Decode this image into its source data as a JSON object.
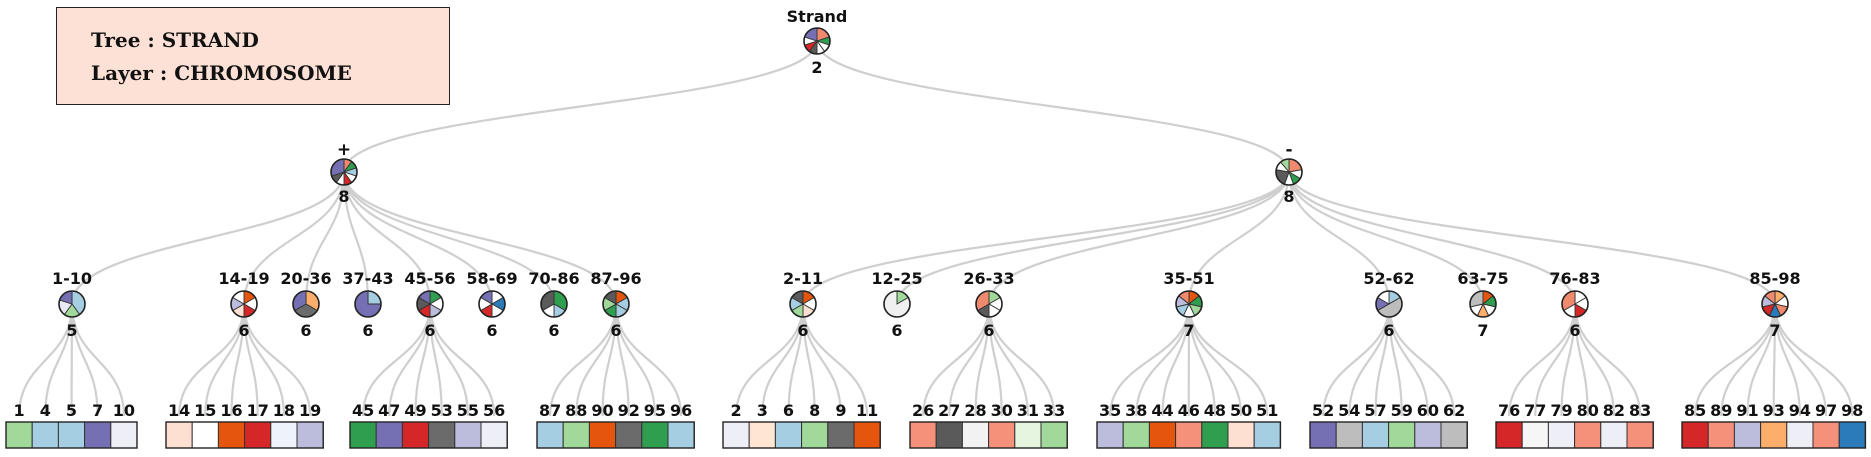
{
  "info": {
    "tree_line": "Tree : STRAND",
    "layer_line": "Layer : CHROMOSOME"
  },
  "colors": {
    "edge": "#cfcfcf",
    "cell_border": "#333333",
    "box_bg": "#fde0d6"
  },
  "tree": {
    "root": {
      "label": "Strand",
      "count": "2",
      "slices": [
        {
          "color": "#f08a6e",
          "value": 2
        },
        {
          "color": "#2f9e4f",
          "value": 1
        },
        {
          "color": "#ffffff",
          "value": 1
        },
        {
          "color": "#ffffff",
          "value": 1
        },
        {
          "color": "#5a5a5a",
          "value": 1
        },
        {
          "color": "#d62728",
          "value": 1
        },
        {
          "color": "#ffffff",
          "value": 1
        },
        {
          "color": "#7570b3",
          "value": 2
        }
      ]
    },
    "groups": [
      {
        "label": "+",
        "count": "8",
        "slices": [
          {
            "color": "#f08a6e",
            "value": 1
          },
          {
            "color": "#2f9e4f",
            "value": 1
          },
          {
            "color": "#a6cee3",
            "value": 1
          },
          {
            "color": "#ffffff",
            "value": 1
          },
          {
            "color": "#d62728",
            "value": 1
          },
          {
            "color": "#ffffff",
            "value": 1
          },
          {
            "color": "#5a5a5a",
            "value": 1
          },
          {
            "color": "#7570b3",
            "value": 3
          }
        ],
        "clusters": [
          {
            "label": "1-10",
            "count": "5",
            "slices": [
              {
                "color": "#a6cee3",
                "value": 2
              },
              {
                "color": "#a1d99b",
                "value": 1
              },
              {
                "color": "#e8e8f4",
                "value": 1
              },
              {
                "color": "#7570b3",
                "value": 1
              }
            ],
            "leaves": [
              {
                "id": "1",
                "color": "#a1d99b"
              },
              {
                "id": "4",
                "color": "#a6cee3"
              },
              {
                "id": "5",
                "color": "#a6cee3"
              },
              {
                "id": "7",
                "color": "#7570b3"
              },
              {
                "id": "10",
                "color": "#eeeef6"
              }
            ]
          },
          {
            "label": "14-19",
            "count": "6",
            "slices": [
              {
                "color": "#e6550d",
                "value": 1
              },
              {
                "color": "#ffffff",
                "value": 1
              },
              {
                "color": "#d62728",
                "value": 1
              },
              {
                "color": "#fee0d2",
                "value": 1
              },
              {
                "color": "#bcbddc",
                "value": 1
              },
              {
                "color": "#ffffff",
                "value": 1
              }
            ],
            "leaves": [
              {
                "id": "14",
                "color": "#fee0d2"
              },
              {
                "id": "15",
                "color": "#ffffff"
              },
              {
                "id": "16",
                "color": "#e6550d"
              },
              {
                "id": "17",
                "color": "#d62728"
              },
              {
                "id": "18",
                "color": "#eef3fb"
              },
              {
                "id": "19",
                "color": "#bcbddc"
              }
            ]
          },
          {
            "label": "20-36",
            "count": "6",
            "slices": [
              {
                "color": "#fdae6b",
                "value": 2
              },
              {
                "color": "#6b6b6b",
                "value": 2
              },
              {
                "color": "#7570b3",
                "value": 2
              }
            ],
            "leaves": []
          },
          {
            "label": "37-43",
            "count": "6",
            "slices": [
              {
                "color": "#a6cee3",
                "value": 1
              },
              {
                "color": "#7570b3",
                "value": 3
              }
            ],
            "leaves": []
          },
          {
            "label": "45-56",
            "count": "6",
            "slices": [
              {
                "color": "#2f9e4f",
                "value": 1
              },
              {
                "color": "#ffffff",
                "value": 1
              },
              {
                "color": "#bcbddc",
                "value": 1
              },
              {
                "color": "#d62728",
                "value": 1
              },
              {
                "color": "#5a5a5a",
                "value": 1
              },
              {
                "color": "#7570b3",
                "value": 1
              }
            ],
            "leaves": [
              {
                "id": "45",
                "color": "#2f9e4f"
              },
              {
                "id": "47",
                "color": "#7570b3"
              },
              {
                "id": "49",
                "color": "#d62728"
              },
              {
                "id": "53",
                "color": "#6b6b6b"
              },
              {
                "id": "55",
                "color": "#bcbddc"
              },
              {
                "id": "56",
                "color": "#eeeef6"
              }
            ]
          },
          {
            "label": "58-69",
            "count": "6",
            "slices": [
              {
                "color": "#ffffff",
                "value": 1
              },
              {
                "color": "#2b7bba",
                "value": 1
              },
              {
                "color": "#ffffff",
                "value": 1
              },
              {
                "color": "#d62728",
                "value": 1
              },
              {
                "color": "#ffffff",
                "value": 1
              },
              {
                "color": "#7570b3",
                "value": 1
              }
            ],
            "leaves": []
          },
          {
            "label": "70-86",
            "count": "6",
            "slices": [
              {
                "color": "#2f9e4f",
                "value": 2
              },
              {
                "color": "#a6cee3",
                "value": 1
              },
              {
                "color": "#ffffff",
                "value": 1
              },
              {
                "color": "#5a5a5a",
                "value": 2
              }
            ],
            "leaves": []
          },
          {
            "label": "87-96",
            "count": "6",
            "slices": [
              {
                "color": "#e6550d",
                "value": 1
              },
              {
                "color": "#a6cee3",
                "value": 1
              },
              {
                "color": "#a6cee3",
                "value": 1
              },
              {
                "color": "#2f9e4f",
                "value": 1
              },
              {
                "color": "#a1d99b",
                "value": 1
              },
              {
                "color": "#5a5a5a",
                "value": 1
              }
            ],
            "leaves": [
              {
                "id": "87",
                "color": "#a6cee3"
              },
              {
                "id": "88",
                "color": "#a1d99b"
              },
              {
                "id": "90",
                "color": "#e6550d"
              },
              {
                "id": "92",
                "color": "#6b6b6b"
              },
              {
                "id": "95",
                "color": "#2f9e4f"
              },
              {
                "id": "96",
                "color": "#a6cee3"
              }
            ]
          }
        ]
      },
      {
        "label": "-",
        "count": "8",
        "slices": [
          {
            "color": "#f08a6e",
            "value": 2
          },
          {
            "color": "#ffffff",
            "value": 1
          },
          {
            "color": "#2f9e4f",
            "value": 1
          },
          {
            "color": "#ffffff",
            "value": 1
          },
          {
            "color": "#5a5a5a",
            "value": 2
          },
          {
            "color": "#ffffff",
            "value": 1
          },
          {
            "color": "#a1d99b",
            "value": 1
          }
        ],
        "clusters": [
          {
            "label": "2-11",
            "count": "6",
            "slices": [
              {
                "color": "#e6550d",
                "value": 1
              },
              {
                "color": "#ffffff",
                "value": 1
              },
              {
                "color": "#fee0d2",
                "value": 1
              },
              {
                "color": "#a1d99b",
                "value": 1
              },
              {
                "color": "#a6cee3",
                "value": 1
              },
              {
                "color": "#5a5a5a",
                "value": 1
              }
            ],
            "leaves": [
              {
                "id": "2",
                "color": "#eeeef6"
              },
              {
                "id": "3",
                "color": "#fee6d2"
              },
              {
                "id": "6",
                "color": "#a6cee3"
              },
              {
                "id": "8",
                "color": "#a1d99b"
              },
              {
                "id": "9",
                "color": "#6b6b6b"
              },
              {
                "id": "11",
                "color": "#e6550d"
              }
            ]
          },
          {
            "label": "12-25",
            "count": "6",
            "slices": [
              {
                "color": "#a1d99b",
                "value": 1
              },
              {
                "color": "#f0f0f0",
                "value": 5
              }
            ],
            "leaves": []
          },
          {
            "label": "26-33",
            "count": "6",
            "slices": [
              {
                "color": "#a1d99b",
                "value": 1
              },
              {
                "color": "#ffffff",
                "value": 1
              },
              {
                "color": "#ffffff",
                "value": 1
              },
              {
                "color": "#5a5a5a",
                "value": 1
              },
              {
                "color": "#f08a6e",
                "value": 2
              }
            ],
            "leaves": [
              {
                "id": "26",
                "color": "#f5917a"
              },
              {
                "id": "27",
                "color": "#5a5a5a"
              },
              {
                "id": "28",
                "color": "#f2f2f2"
              },
              {
                "id": "30",
                "color": "#f5917a"
              },
              {
                "id": "31",
                "color": "#e5f5e0"
              },
              {
                "id": "33",
                "color": "#a1d99b"
              }
            ]
          },
          {
            "label": "35-51",
            "count": "7",
            "slices": [
              {
                "color": "#e6550d",
                "value": 1
              },
              {
                "color": "#2f9e4f",
                "value": 1
              },
              {
                "color": "#a1d99b",
                "value": 1
              },
              {
                "color": "#ffffff",
                "value": 1
              },
              {
                "color": "#a6cee3",
                "value": 1
              },
              {
                "color": "#bcbddc",
                "value": 1
              },
              {
                "color": "#f08a6e",
                "value": 1
              }
            ],
            "leaves": [
              {
                "id": "35",
                "color": "#bcbddc"
              },
              {
                "id": "38",
                "color": "#a1d99b"
              },
              {
                "id": "44",
                "color": "#e6550d"
              },
              {
                "id": "46",
                "color": "#f5917a"
              },
              {
                "id": "48",
                "color": "#2f9e4f"
              },
              {
                "id": "50",
                "color": "#fee0d2"
              },
              {
                "id": "51",
                "color": "#a6cee3"
              }
            ]
          },
          {
            "label": "52-62",
            "count": "6",
            "slices": [
              {
                "color": "#a6cee3",
                "value": 1
              },
              {
                "color": "#bdbdbd",
                "value": 3
              },
              {
                "color": "#7570b3",
                "value": 1
              },
              {
                "color": "#ffffff",
                "value": 1
              }
            ],
            "leaves": [
              {
                "id": "52",
                "color": "#7570b3"
              },
              {
                "id": "54",
                "color": "#bdbdbd"
              },
              {
                "id": "57",
                "color": "#a6cee3"
              },
              {
                "id": "59",
                "color": "#a1d99b"
              },
              {
                "id": "60",
                "color": "#bcbddc"
              },
              {
                "id": "62",
                "color": "#bdbdbd"
              }
            ]
          },
          {
            "label": "63-75",
            "count": "7",
            "slices": [
              {
                "color": "#e6550d",
                "value": 1
              },
              {
                "color": "#2f9e4f",
                "value": 1
              },
              {
                "color": "#ffffff",
                "value": 1
              },
              {
                "color": "#fdae6b",
                "value": 1
              },
              {
                "color": "#ffffff",
                "value": 1
              },
              {
                "color": "#bdbdbd",
                "value": 2
              }
            ],
            "leaves": []
          },
          {
            "label": "76-83",
            "count": "6",
            "slices": [
              {
                "color": "#ffffff",
                "value": 1
              },
              {
                "color": "#ffffff",
                "value": 1
              },
              {
                "color": "#d62728",
                "value": 1
              },
              {
                "color": "#ffffff",
                "value": 1
              },
              {
                "color": "#f08a6e",
                "value": 2
              }
            ],
            "leaves": [
              {
                "id": "76",
                "color": "#d62728"
              },
              {
                "id": "77",
                "color": "#f6f6f6"
              },
              {
                "id": "79",
                "color": "#eeeef6"
              },
              {
                "id": "80",
                "color": "#f5917a"
              },
              {
                "id": "82",
                "color": "#eeeef6"
              },
              {
                "id": "83",
                "color": "#f5917a"
              }
            ]
          },
          {
            "label": "85-98",
            "count": "7",
            "slices": [
              {
                "color": "#fdae6b",
                "value": 1
              },
              {
                "color": "#ffffff",
                "value": 1
              },
              {
                "color": "#f08a6e",
                "value": 1
              },
              {
                "color": "#2b7bba",
                "value": 1
              },
              {
                "color": "#d62728",
                "value": 1
              },
              {
                "color": "#bcbddc",
                "value": 1
              },
              {
                "color": "#f08a6e",
                "value": 1
              }
            ],
            "leaves": [
              {
                "id": "85",
                "color": "#d62728"
              },
              {
                "id": "89",
                "color": "#f5917a"
              },
              {
                "id": "91",
                "color": "#bcbddc"
              },
              {
                "id": "93",
                "color": "#fdae6b"
              },
              {
                "id": "94",
                "color": "#eeeef6"
              },
              {
                "id": "97",
                "color": "#f5917a"
              },
              {
                "id": "98",
                "color": "#2b7bba"
              }
            ]
          }
        ]
      }
    ]
  }
}
